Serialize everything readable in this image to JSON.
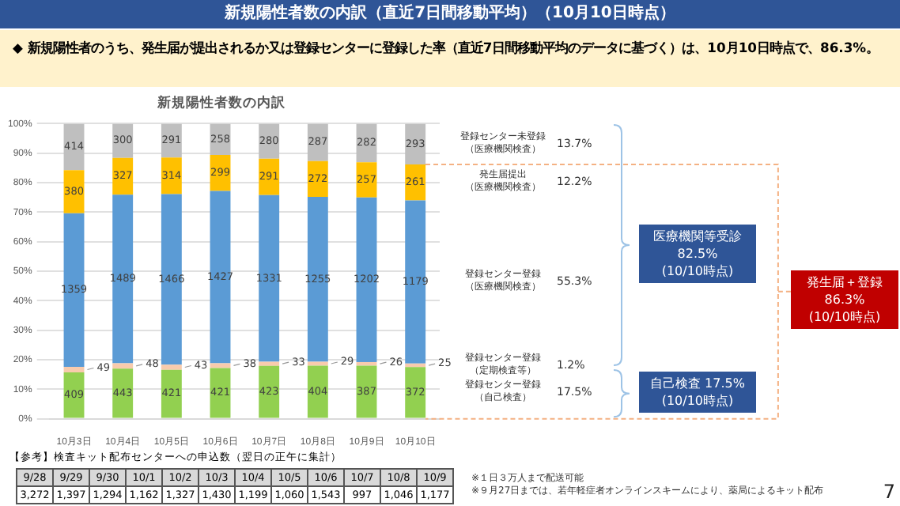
{
  "chart_data": [
    {
      "type": "bar",
      "title": "新規陽性者数の内訳",
      "stacked": true,
      "grid": "y",
      "legend": false,
      "categories": [
        "10月3日",
        "10月4日",
        "10月5日",
        "10月6日",
        "10月7日",
        "10月8日",
        "10月9日",
        "10月10日"
      ],
      "ylim": [
        0,
        100
      ],
      "yticks": [
        {
          "value": 0,
          "label": "0%"
        },
        {
          "value": 10,
          "label": "10%"
        },
        {
          "value": 20,
          "label": "20%"
        },
        {
          "value": 30,
          "label": "30%"
        },
        {
          "value": 40,
          "label": "40%"
        },
        {
          "value": 50,
          "label": "50%"
        },
        {
          "value": 60,
          "label": "60%"
        },
        {
          "value": 70,
          "label": "70%"
        },
        {
          "value": 80,
          "label": "80%"
        },
        {
          "value": 90,
          "label": "90%"
        },
        {
          "value": 100,
          "label": "100%"
        }
      ],
      "series": [
        {
          "name": "登録センター登録（自己検査）",
          "color": "#92d050",
          "values": [
            15.7,
            17.0,
            16.6,
            17.2,
            17.9,
            18.0,
            18.0,
            17.5
          ]
        },
        {
          "name": "登録センター登録（定期検査等）",
          "color": "#f8cbad",
          "values": [
            1.9,
            1.8,
            1.7,
            1.6,
            1.4,
            1.3,
            1.2,
            1.2
          ]
        },
        {
          "name": "登録センター登録（医療機関検査）",
          "color": "#5b9bd5",
          "values": [
            52.0,
            57.1,
            57.8,
            58.4,
            56.5,
            55.9,
            55.8,
            55.3
          ]
        },
        {
          "name": "発生届提出（医療機関検査）",
          "color": "#ffc000",
          "values": [
            14.6,
            12.5,
            12.4,
            12.2,
            12.3,
            12.1,
            11.9,
            12.2
          ]
        },
        {
          "name": "登録センター未登録（医療機関検査）",
          "color": "#bfbfbf",
          "values": [
            15.8,
            11.6,
            11.5,
            10.6,
            11.9,
            12.7,
            13.1,
            13.8
          ]
        }
      ],
      "annotations": [
        "新規陽性者数の内訳（直近7日間移動平均）（10月10日時点）",
        "◆ 新規陽性者のうち、発生届が提出されるか又は登録センターに登録した率（直近7日間移動平均のデータに基づく）は、10月10日時点で、86.3%。",
        "医療機関等受診 82.5%(10/10時点)",
        "自己検査 17.5%(10/10時点)",
        "発生届＋登録 86.3%(10/10時点)",
        "7",
        "17.5%",
        "1.2%",
        "55.3%",
        "12.2%",
        "13.7%",
        "409",
        "443",
        "421",
        "421",
        "423",
        "404",
        "387",
        "372",
        "49",
        "48",
        "43",
        "38",
        "33",
        "29",
        "26",
        "25",
        "1359",
        "1489",
        "1466",
        "1427",
        "1331",
        "1255",
        "1202",
        "1179",
        "380",
        "327",
        "314",
        "299",
        "291",
        "272",
        "257",
        "261",
        "414",
        "300",
        "291",
        "258",
        "280",
        "287",
        "282",
        "293"
      ]
    },
    {
      "type": "other",
      "title": "【参考】検査キット配布センターへの申込数（翌日の正午に集計）",
      "categories": [
        "9/28",
        "9/29",
        "9/30",
        "10/1",
        "10/2",
        "10/3",
        "10/4",
        "10/5",
        "10/6",
        "10/7",
        "10/8",
        "10/9"
      ],
      "annotations": [
        "3,272",
        "1,397",
        "1,294",
        "1,162",
        "1,327",
        "1,430",
        "1,199",
        "1,060",
        "1,543",
        "997",
        "1,046",
        "1,177",
        "※１日３万人まで配送可能",
        "※９月27日までは、若年軽症者オンラインスキームにより、薬局によるキット配布"
      ]
    }
  ]
}
